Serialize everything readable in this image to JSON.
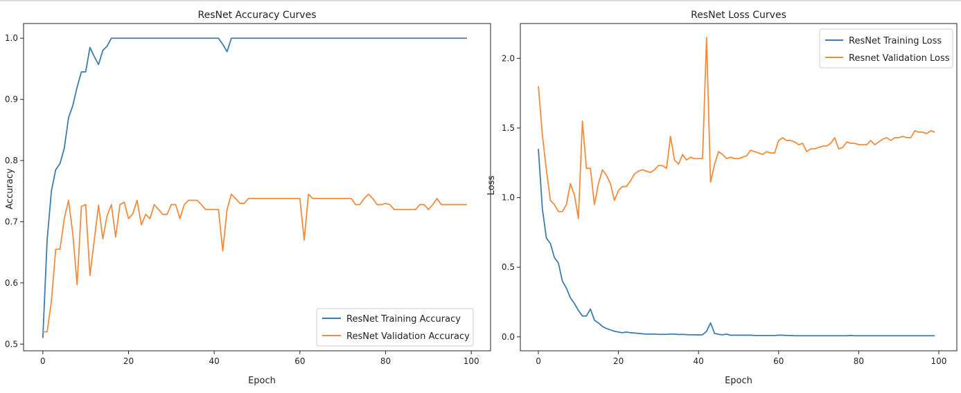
{
  "colors": {
    "train": "#3a7cb0",
    "val": "#f58b3a"
  },
  "chart_data": [
    {
      "type": "line",
      "title": "ResNet Accuracy Curves",
      "xlabel": "Epoch",
      "ylabel": "Accuracy",
      "xlim": [
        -4.5,
        104.5
      ],
      "ylim": [
        0.489,
        1.024
      ],
      "xticks": [
        0,
        20,
        40,
        60,
        80,
        100
      ],
      "xtick_labels": [
        "0",
        "20",
        "40",
        "60",
        "80",
        "100"
      ],
      "yticks": [
        0.5,
        0.6,
        0.7,
        0.8,
        0.9,
        1.0
      ],
      "ytick_labels": [
        "0.5",
        "0.6",
        "0.7",
        "0.8",
        "0.9",
        "1.0"
      ],
      "legend_position": "lower-right",
      "series": [
        {
          "name": "ResNet Training Accuracy",
          "color_key": "train",
          "values": [
            0.51,
            0.67,
            0.75,
            0.785,
            0.795,
            0.82,
            0.87,
            0.89,
            0.92,
            0.945,
            0.945,
            0.985,
            0.97,
            0.957,
            0.98,
            0.987,
            1.0,
            1.0,
            1.0,
            1.0,
            1.0,
            1.0,
            1.0,
            1.0,
            1.0,
            1.0,
            1.0,
            1.0,
            1.0,
            1.0,
            1.0,
            1.0,
            1.0,
            1.0,
            1.0,
            1.0,
            1.0,
            1.0,
            1.0,
            1.0,
            1.0,
            1.0,
            0.99,
            0.978,
            1.0,
            1.0,
            1.0,
            1.0,
            1.0,
            1.0,
            1.0,
            1.0,
            1.0,
            1.0,
            1.0,
            1.0,
            1.0,
            1.0,
            1.0,
            1.0,
            1.0,
            1.0,
            1.0,
            1.0,
            1.0,
            1.0,
            1.0,
            1.0,
            1.0,
            1.0,
            1.0,
            1.0,
            1.0,
            1.0,
            1.0,
            1.0,
            1.0,
            1.0,
            1.0,
            1.0,
            1.0,
            1.0,
            1.0,
            1.0,
            1.0,
            1.0,
            1.0,
            1.0,
            1.0,
            1.0,
            1.0,
            1.0,
            1.0,
            1.0,
            1.0,
            1.0,
            1.0,
            1.0,
            1.0,
            1.0
          ]
        },
        {
          "name": "ResNet Validation Accuracy",
          "color_key": "val",
          "values": [
            0.52,
            0.52,
            0.57,
            0.655,
            0.655,
            0.705,
            0.735,
            0.68,
            0.597,
            0.725,
            0.728,
            0.612,
            0.67,
            0.727,
            0.672,
            0.71,
            0.728,
            0.675,
            0.728,
            0.732,
            0.705,
            0.713,
            0.735,
            0.695,
            0.712,
            0.705,
            0.728,
            0.72,
            0.712,
            0.712,
            0.728,
            0.728,
            0.705,
            0.728,
            0.735,
            0.735,
            0.735,
            0.728,
            0.72,
            0.72,
            0.72,
            0.72,
            0.652,
            0.72,
            0.745,
            0.738,
            0.73,
            0.73,
            0.738,
            0.738,
            0.738,
            0.738,
            0.738,
            0.738,
            0.738,
            0.738,
            0.738,
            0.738,
            0.738,
            0.738,
            0.738,
            0.67,
            0.745,
            0.738,
            0.738,
            0.738,
            0.738,
            0.738,
            0.738,
            0.738,
            0.738,
            0.738,
            0.738,
            0.728,
            0.728,
            0.738,
            0.745,
            0.738,
            0.728,
            0.728,
            0.73,
            0.728,
            0.72,
            0.72,
            0.72,
            0.72,
            0.72,
            0.72,
            0.728,
            0.728,
            0.72,
            0.728,
            0.738,
            0.728,
            0.728,
            0.728,
            0.728,
            0.728,
            0.728,
            0.728
          ]
        }
      ]
    },
    {
      "type": "line",
      "title": "ResNet Loss Curves",
      "xlabel": "Epoch",
      "ylabel": "Loss",
      "xlim": [
        -4.5,
        104.5
      ],
      "ylim": [
        -0.1,
        2.25
      ],
      "xticks": [
        0,
        20,
        40,
        60,
        80,
        100
      ],
      "xtick_labels": [
        "0",
        "20",
        "40",
        "60",
        "80",
        "100"
      ],
      "yticks": [
        0.0,
        0.5,
        1.0,
        1.5,
        2.0
      ],
      "ytick_labels": [
        "0.0",
        "0.5",
        "1.0",
        "1.5",
        "2.0"
      ],
      "legend_position": "top-right",
      "series": [
        {
          "name": "ResNet Training Loss",
          "color_key": "train",
          "values": [
            1.35,
            0.92,
            0.71,
            0.67,
            0.57,
            0.53,
            0.4,
            0.35,
            0.28,
            0.24,
            0.19,
            0.15,
            0.15,
            0.2,
            0.12,
            0.1,
            0.075,
            0.06,
            0.05,
            0.04,
            0.035,
            0.03,
            0.035,
            0.03,
            0.028,
            0.025,
            0.022,
            0.02,
            0.02,
            0.02,
            0.018,
            0.018,
            0.018,
            0.02,
            0.02,
            0.017,
            0.018,
            0.016,
            0.015,
            0.015,
            0.014,
            0.015,
            0.04,
            0.1,
            0.025,
            0.018,
            0.015,
            0.02,
            0.012,
            0.012,
            0.012,
            0.012,
            0.012,
            0.012,
            0.01,
            0.01,
            0.01,
            0.01,
            0.01,
            0.01,
            0.012,
            0.012,
            0.01,
            0.01,
            0.008,
            0.008,
            0.008,
            0.008,
            0.008,
            0.008,
            0.008,
            0.008,
            0.008,
            0.008,
            0.008,
            0.008,
            0.008,
            0.008,
            0.01,
            0.008,
            0.008,
            0.008,
            0.008,
            0.008,
            0.008,
            0.008,
            0.008,
            0.008,
            0.008,
            0.008,
            0.008,
            0.008,
            0.008,
            0.008,
            0.008,
            0.008,
            0.008,
            0.008,
            0.008,
            0.008
          ]
        },
        {
          "name": "Resnet Validation Loss",
          "color_key": "val",
          "values": [
            1.8,
            1.45,
            1.2,
            0.98,
            0.95,
            0.9,
            0.9,
            0.95,
            1.1,
            1.02,
            0.85,
            1.55,
            1.21,
            1.21,
            0.95,
            1.1,
            1.2,
            1.16,
            1.1,
            0.98,
            1.05,
            1.08,
            1.08,
            1.12,
            1.17,
            1.19,
            1.2,
            1.19,
            1.18,
            1.2,
            1.23,
            1.23,
            1.21,
            1.44,
            1.27,
            1.24,
            1.31,
            1.27,
            1.29,
            1.28,
            1.28,
            1.28,
            2.15,
            1.11,
            1.24,
            1.33,
            1.31,
            1.28,
            1.29,
            1.28,
            1.28,
            1.29,
            1.3,
            1.34,
            1.33,
            1.32,
            1.31,
            1.33,
            1.32,
            1.32,
            1.41,
            1.43,
            1.41,
            1.41,
            1.4,
            1.38,
            1.39,
            1.33,
            1.35,
            1.35,
            1.36,
            1.37,
            1.37,
            1.39,
            1.43,
            1.35,
            1.36,
            1.4,
            1.39,
            1.39,
            1.38,
            1.38,
            1.38,
            1.41,
            1.38,
            1.4,
            1.42,
            1.43,
            1.41,
            1.43,
            1.43,
            1.44,
            1.43,
            1.43,
            1.48,
            1.47,
            1.47,
            1.46,
            1.48,
            1.47
          ]
        }
      ]
    }
  ]
}
